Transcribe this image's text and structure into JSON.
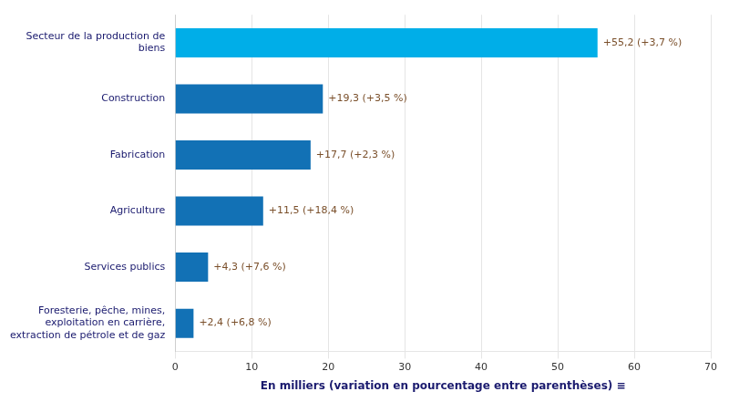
{
  "chart_data": {
    "type": "bar",
    "orientation": "horizontal",
    "categories": [
      "Foresterie, pêche, mines,\nexploitation en carrière,\nextraction de pétrole et de gaz",
      "Services publics",
      "Agriculture",
      "Fabrication",
      "Construction",
      "Secteur de la production de\nbiens"
    ],
    "values": [
      2.4,
      4.3,
      11.5,
      17.7,
      19.3,
      55.2
    ],
    "value_labels": [
      "+2,4 (+6,8 %)",
      "+4,3 (+7,6 %)",
      "+11,5 (+18,4 %)",
      "+17,7 (+2,3 %)",
      "+19,3 (+3,5 %)",
      "+55,2 (+3,7 %)"
    ],
    "data_labels": true,
    "colors": [
      "#1271b5",
      "#1271b5",
      "#1271b5",
      "#1271b5",
      "#1271b5",
      "#00aee8"
    ],
    "xlabel": "En milliers (variation en pourcentage entre parenthèses) ≡",
    "xlim": [
      0,
      70
    ],
    "xticks": [
      0,
      10,
      20,
      30,
      40,
      50,
      60,
      70
    ],
    "grid": true
  }
}
